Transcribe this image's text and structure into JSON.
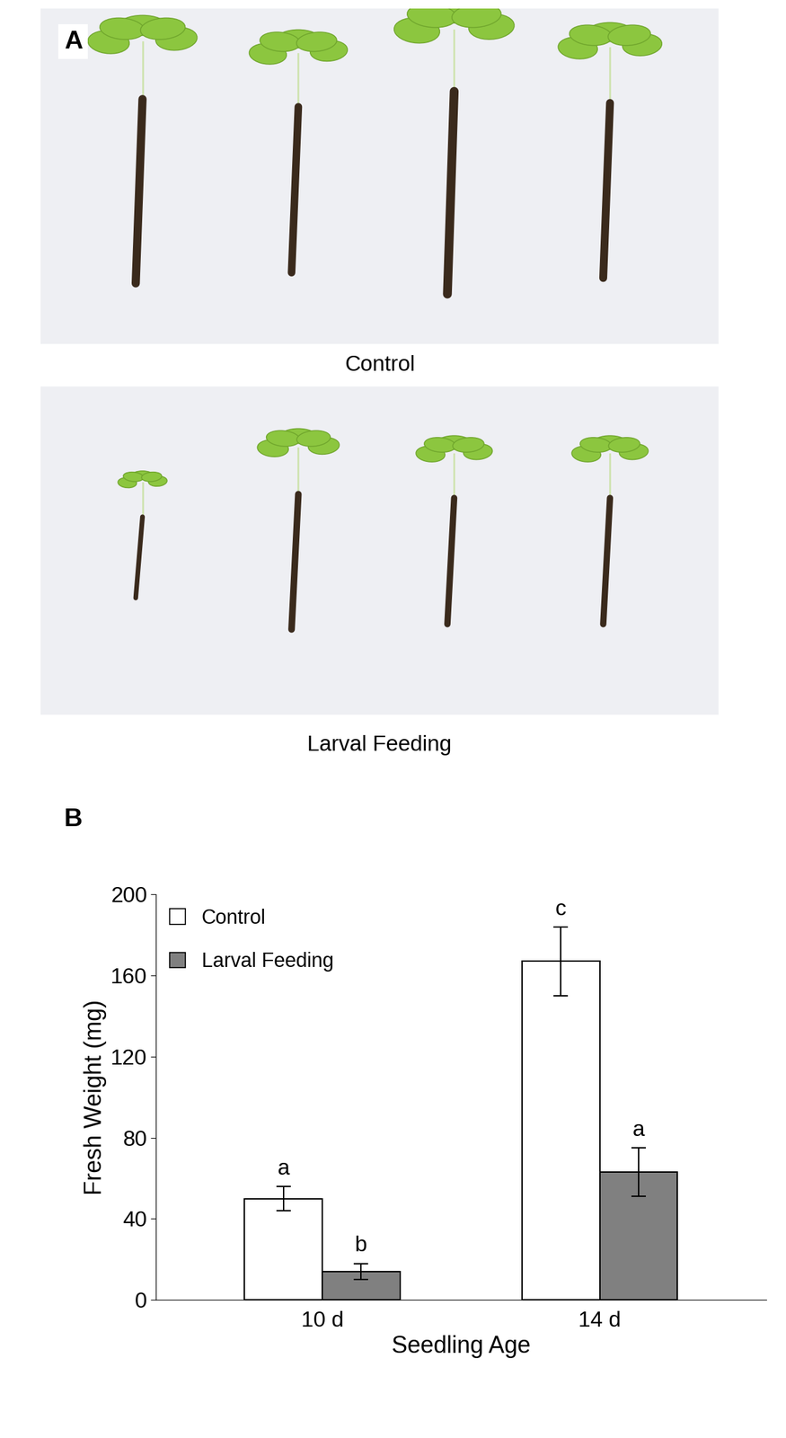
{
  "panel_a": {
    "label": "A",
    "images": [
      {
        "caption": "Control"
      },
      {
        "caption": "Larval Feeding"
      }
    ]
  },
  "chart_data": {
    "type": "bar",
    "panel_label": "B",
    "categories": [
      "10 d",
      "14 d"
    ],
    "x_label": "Seedling Age",
    "y_label": "Fresh Weight (mg)",
    "series": [
      {
        "name": "Control",
        "color": "#ffffff",
        "values": [
          50,
          167
        ],
        "errors": [
          6,
          17
        ],
        "letters": [
          "a",
          "c"
        ]
      },
      {
        "name": "Larval Feeding",
        "color": "#808080",
        "values": [
          14,
          63
        ],
        "errors": [
          4,
          12
        ],
        "letters": [
          "b",
          "a"
        ]
      }
    ],
    "ylim": [
      0,
      200
    ],
    "yticks": [
      0,
      40,
      80,
      120,
      160,
      200
    ],
    "legend": "upper left",
    "grid": false
  }
}
